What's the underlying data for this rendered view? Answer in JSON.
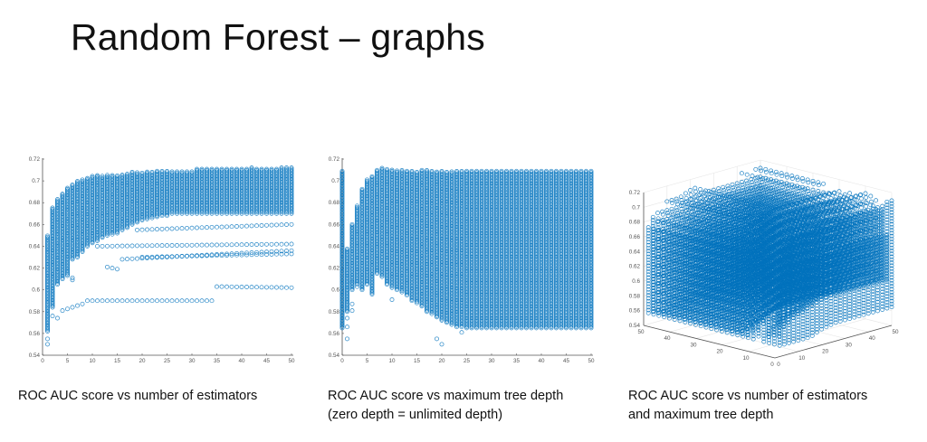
{
  "slide": {
    "title": "Random Forest – graphs",
    "captions": [
      {
        "line1": "ROC AUC score vs number of estimators"
      },
      {
        "line1": "ROC AUC score vs maximum tree depth",
        "line2": "(zero depth = unlimited depth)"
      },
      {
        "line1": "ROC AUC score vs number of estimators",
        "line2": "and maximum tree depth"
      }
    ]
  },
  "colors": {
    "marker": "#0072BD",
    "axis": "#555555",
    "grid": "#e6e6e6"
  },
  "chart_data": [
    {
      "type": "scatter",
      "title": "ROC AUC score vs number of estimators",
      "xlabel": "",
      "ylabel": "",
      "xlim": [
        0,
        50
      ],
      "ylim": [
        0.54,
        0.72
      ],
      "xticks": [
        "0",
        "5",
        "10",
        "15",
        "20",
        "25",
        "30",
        "35",
        "40",
        "45",
        "50"
      ],
      "yticks": [
        "0.54",
        "0.56",
        "0.58",
        "0.6",
        "0.62",
        "0.64",
        "0.66",
        "0.68",
        "0.7",
        "0.72"
      ],
      "grid": false,
      "band_x": [
        1,
        2,
        3,
        4,
        5,
        6,
        7,
        8,
        9,
        10,
        11,
        12,
        13,
        14,
        15,
        16,
        17,
        18,
        19,
        20,
        21,
        22,
        23,
        24,
        25,
        26,
        27,
        28,
        29,
        30,
        31,
        32,
        33,
        34,
        35,
        36,
        37,
        38,
        39,
        40,
        41,
        42,
        43,
        44,
        45,
        46,
        47,
        48,
        49,
        50
      ],
      "band_high": [
        0.65,
        0.676,
        0.683,
        0.689,
        0.694,
        0.697,
        0.7,
        0.701,
        0.703,
        0.705,
        0.705,
        0.705,
        0.706,
        0.705,
        0.705,
        0.706,
        0.707,
        0.708,
        0.708,
        0.708,
        0.709,
        0.709,
        0.709,
        0.709,
        0.709,
        0.709,
        0.709,
        0.709,
        0.709,
        0.709,
        0.711,
        0.711,
        0.711,
        0.711,
        0.711,
        0.711,
        0.711,
        0.711,
        0.711,
        0.711,
        0.711,
        0.712,
        0.711,
        0.711,
        0.711,
        0.711,
        0.711,
        0.712,
        0.712,
        0.712
      ],
      "band_low": [
        0.562,
        0.584,
        0.605,
        0.61,
        0.613,
        0.628,
        0.63,
        0.635,
        0.64,
        0.643,
        0.645,
        0.648,
        0.65,
        0.651,
        0.652,
        0.655,
        0.657,
        0.66,
        0.662,
        0.664,
        0.665,
        0.666,
        0.667,
        0.668,
        0.668,
        0.67,
        0.67,
        0.67,
        0.67,
        0.67,
        0.67,
        0.67,
        0.67,
        0.67,
        0.67,
        0.67,
        0.67,
        0.67,
        0.67,
        0.67,
        0.67,
        0.67,
        0.67,
        0.67,
        0.67,
        0.67,
        0.67,
        0.67,
        0.67,
        0.67
      ],
      "lines": [
        {
          "x": [
            4,
            8
          ],
          "y": [
            0.581,
            0.587
          ]
        },
        {
          "x": [
            9,
            34
          ],
          "y": [
            0.59,
            0.59
          ]
        },
        {
          "x": [
            35,
            50
          ],
          "y": [
            0.603,
            0.602
          ]
        },
        {
          "x": [
            11,
            50
          ],
          "y": [
            0.64,
            0.642
          ]
        },
        {
          "x": [
            16,
            50
          ],
          "y": [
            0.628,
            0.636
          ]
        },
        {
          "x": [
            19,
            50
          ],
          "y": [
            0.655,
            0.66
          ]
        },
        {
          "x": [
            20,
            50
          ],
          "y": [
            0.63,
            0.633
          ]
        }
      ],
      "outliers": {
        "x": [
          1,
          1,
          2,
          3,
          6,
          6,
          13,
          14,
          15
        ],
        "y": [
          0.555,
          0.55,
          0.576,
          0.574,
          0.609,
          0.611,
          0.621,
          0.62,
          0.619
        ]
      }
    },
    {
      "type": "scatter",
      "title": "ROC AUC score vs maximum tree depth",
      "xlabel": "",
      "ylabel": "",
      "xlim": [
        0,
        50
      ],
      "ylim": [
        0.54,
        0.72
      ],
      "xticks": [
        "0",
        "5",
        "10",
        "15",
        "20",
        "25",
        "30",
        "35",
        "40",
        "45",
        "50"
      ],
      "yticks": [
        "0.54",
        "0.56",
        "0.58",
        "0.6",
        "0.62",
        "0.64",
        "0.66",
        "0.68",
        "0.7",
        "0.72"
      ],
      "grid": false,
      "band_x": [
        0,
        1,
        2,
        3,
        4,
        5,
        6,
        7,
        8,
        9,
        10,
        11,
        12,
        13,
        14,
        15,
        16,
        17,
        18,
        19,
        20,
        21,
        22,
        23,
        24,
        25,
        26,
        27,
        28,
        29,
        30,
        31,
        32,
        33,
        34,
        35,
        36,
        37,
        38,
        39,
        40,
        41,
        42,
        43,
        44,
        45,
        46,
        47,
        48,
        49,
        50
      ],
      "band_high": [
        0.709,
        0.638,
        0.661,
        0.678,
        0.693,
        0.701,
        0.705,
        0.71,
        0.712,
        0.711,
        0.711,
        0.71,
        0.71,
        0.709,
        0.709,
        0.709,
        0.71,
        0.71,
        0.709,
        0.709,
        0.709,
        0.709,
        0.709,
        0.709,
        0.709,
        0.709,
        0.709,
        0.709,
        0.709,
        0.709,
        0.709,
        0.709,
        0.709,
        0.709,
        0.709,
        0.709,
        0.709,
        0.709,
        0.709,
        0.709,
        0.709,
        0.709,
        0.709,
        0.709,
        0.709,
        0.709,
        0.709,
        0.709,
        0.709,
        0.709,
        0.709
      ],
      "band_low": [
        0.565,
        0.58,
        0.6,
        0.605,
        0.6,
        0.605,
        0.596,
        0.615,
        0.612,
        0.605,
        0.602,
        0.6,
        0.598,
        0.595,
        0.59,
        0.588,
        0.585,
        0.58,
        0.578,
        0.575,
        0.572,
        0.57,
        0.568,
        0.566,
        0.566,
        0.565,
        0.565,
        0.565,
        0.565,
        0.565,
        0.565,
        0.565,
        0.565,
        0.565,
        0.565,
        0.565,
        0.565,
        0.565,
        0.565,
        0.565,
        0.565,
        0.565,
        0.565,
        0.565,
        0.565,
        0.565,
        0.565,
        0.565,
        0.565,
        0.565,
        0.565
      ],
      "lines": [],
      "outliers": {
        "x": [
          1,
          1,
          1,
          2,
          2,
          10,
          19,
          20,
          24,
          2,
          3
        ],
        "y": [
          0.555,
          0.566,
          0.574,
          0.587,
          0.581,
          0.591,
          0.555,
          0.55,
          0.561,
          0.607,
          0.603
        ]
      }
    },
    {
      "type": "scatter3d",
      "title": "ROC AUC score vs number of estimators and maximum tree depth",
      "zlim": [
        0.54,
        0.72
      ],
      "zticks": [
        "0.54",
        "0.56",
        "0.58",
        "0.6",
        "0.62",
        "0.64",
        "0.66",
        "0.68",
        "0.7",
        "0.72"
      ],
      "left_axis_ticks": [
        "0",
        "10",
        "20",
        "30",
        "40",
        "50"
      ],
      "right_axis_ticks": [
        "0",
        "10",
        "20",
        "30",
        "40",
        "50"
      ],
      "grid": true
    }
  ]
}
